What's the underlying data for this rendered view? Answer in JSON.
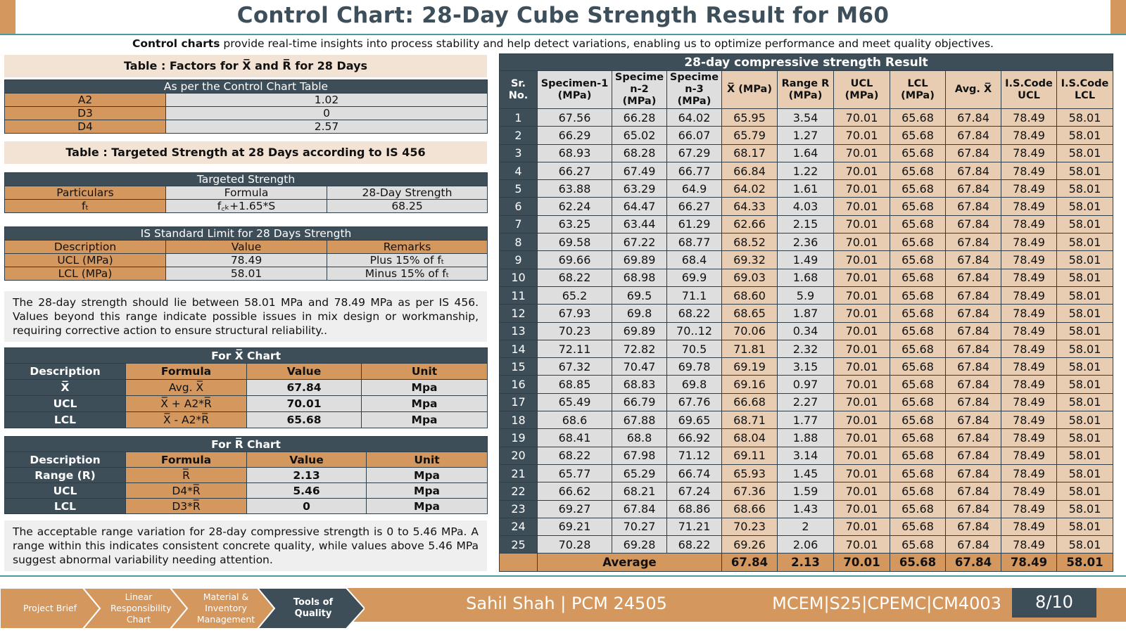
{
  "title": "Control Chart: 28-Day Cube Strength Result for M60",
  "intro": {
    "bold": "Control charts",
    "rest": " provide real-time insights into process stability and help detect variations, enabling us to optimize performance and meet quality objectives."
  },
  "factors": {
    "panel_title": "Table : Factors for X̅ and R̅ for 28 Days",
    "header": "As per the Control Chart Table",
    "rows": [
      {
        "name": "A2",
        "value": "1.02"
      },
      {
        "name": "D3",
        "value": "0"
      },
      {
        "name": "D4",
        "value": "2.57"
      }
    ]
  },
  "targeted": {
    "panel_title": "Table : Targeted Strength at 28 Days according to IS 456",
    "header": "Targeted Strength",
    "cols": [
      "Particulars",
      "Formula",
      "28-Day Strength"
    ],
    "row": {
      "particular": "fₜ",
      "formula": "f꜀ₖ+1.65*S",
      "strength": "68.25"
    }
  },
  "is_limit": {
    "header": "IS Standard Limit for 28 Days Strength",
    "cols": [
      "Description",
      "Value",
      "Remarks"
    ],
    "rows": [
      {
        "desc": "UCL (MPa)",
        "value": "78.49",
        "remark": "Plus 15% of fₜ"
      },
      {
        "desc": "LCL (MPa)",
        "value": "58.01",
        "remark": "Minus 15% of fₜ"
      }
    ]
  },
  "note1": "The 28-day strength should lie between 58.01 MPa and 78.49 MPa as per IS 456. Values beyond this range indicate possible issues in mix design or workmanship, requiring corrective action to ensure structural reliability..",
  "xchart": {
    "header": "For X̅ Chart",
    "cols": [
      "Description",
      "Formula",
      "Value",
      "Unit"
    ],
    "rows": [
      {
        "desc": "X̅",
        "formula": "Avg. X̅",
        "value": "67.84",
        "unit": "Mpa"
      },
      {
        "desc": "UCL",
        "formula": "X̅ + A2*R̅",
        "value": "70.01",
        "unit": "Mpa"
      },
      {
        "desc": "LCL",
        "formula": "X̅ - A2*R̅",
        "value": "65.68",
        "unit": "Mpa"
      }
    ]
  },
  "rchart": {
    "header": "For R̅ Chart",
    "cols": [
      "Description",
      "Formula",
      "Value",
      "Unit"
    ],
    "rows": [
      {
        "desc": "Range (R)",
        "formula": "R̅",
        "value": "2.13",
        "unit": "Mpa"
      },
      {
        "desc": "UCL",
        "formula": "D4*R̅",
        "value": "5.46",
        "unit": "Mpa"
      },
      {
        "desc": "LCL",
        "formula": "D3*R̅",
        "value": "0",
        "unit": "Mpa"
      }
    ]
  },
  "note2": "The acceptable range variation for 28-day compressive strength is 0 to 5.46 MPa. A range within this indicates consistent concrete quality, while values above 5.46 MPa suggest abnormal variability needing attention.",
  "results": {
    "caption": "28-day compressive strength Result",
    "headers": [
      "Sr. No.",
      "Specimen-1 (MPa)",
      "Specime n-2 (MPa)",
      "Specime n-3 (MPa)",
      "X̅ (MPa)",
      "Range R (MPa)",
      "UCL (MPa)",
      "LCL (MPa)",
      "Avg. X̅",
      "I.S.Code UCL",
      "I.S.Code LCL"
    ],
    "rows": [
      [
        "1",
        "67.56",
        "66.28",
        "64.02",
        "65.95",
        "3.54",
        "70.01",
        "65.68",
        "67.84",
        "78.49",
        "58.01"
      ],
      [
        "2",
        "66.29",
        "65.02",
        "66.07",
        "65.79",
        "1.27",
        "70.01",
        "65.68",
        "67.84",
        "78.49",
        "58.01"
      ],
      [
        "3",
        "68.93",
        "68.28",
        "67.29",
        "68.17",
        "1.64",
        "70.01",
        "65.68",
        "67.84",
        "78.49",
        "58.01"
      ],
      [
        "4",
        "66.27",
        "67.49",
        "66.77",
        "66.84",
        "1.22",
        "70.01",
        "65.68",
        "67.84",
        "78.49",
        "58.01"
      ],
      [
        "5",
        "63.88",
        "63.29",
        "64.9",
        "64.02",
        "1.61",
        "70.01",
        "65.68",
        "67.84",
        "78.49",
        "58.01"
      ],
      [
        "6",
        "62.24",
        "64.47",
        "66.27",
        "64.33",
        "4.03",
        "70.01",
        "65.68",
        "67.84",
        "78.49",
        "58.01"
      ],
      [
        "7",
        "63.25",
        "63.44",
        "61.29",
        "62.66",
        "2.15",
        "70.01",
        "65.68",
        "67.84",
        "78.49",
        "58.01"
      ],
      [
        "8",
        "69.58",
        "67.22",
        "68.77",
        "68.52",
        "2.36",
        "70.01",
        "65.68",
        "67.84",
        "78.49",
        "58.01"
      ],
      [
        "9",
        "69.66",
        "69.89",
        "68.4",
        "69.32",
        "1.49",
        "70.01",
        "65.68",
        "67.84",
        "78.49",
        "58.01"
      ],
      [
        "10",
        "68.22",
        "68.98",
        "69.9",
        "69.03",
        "1.68",
        "70.01",
        "65.68",
        "67.84",
        "78.49",
        "58.01"
      ],
      [
        "11",
        "65.2",
        "69.5",
        "71.1",
        "68.60",
        "5.9",
        "70.01",
        "65.68",
        "67.84",
        "78.49",
        "58.01"
      ],
      [
        "12",
        "67.93",
        "69.8",
        "68.22",
        "68.65",
        "1.87",
        "70.01",
        "65.68",
        "67.84",
        "78.49",
        "58.01"
      ],
      [
        "13",
        "70.23",
        "69.89",
        "70..12",
        "70.06",
        "0.34",
        "70.01",
        "65.68",
        "67.84",
        "78.49",
        "58.01"
      ],
      [
        "14",
        "72.11",
        "72.82",
        "70.5",
        "71.81",
        "2.32",
        "70.01",
        "65.68",
        "67.84",
        "78.49",
        "58.01"
      ],
      [
        "15",
        "67.32",
        "70.47",
        "69.78",
        "69.19",
        "3.15",
        "70.01",
        "65.68",
        "67.84",
        "78.49",
        "58.01"
      ],
      [
        "16",
        "68.85",
        "68.83",
        "69.8",
        "69.16",
        "0.97",
        "70.01",
        "65.68",
        "67.84",
        "78.49",
        "58.01"
      ],
      [
        "17",
        "65.49",
        "66.79",
        "67.76",
        "66.68",
        "2.27",
        "70.01",
        "65.68",
        "67.84",
        "78.49",
        "58.01"
      ],
      [
        "18",
        "68.6",
        "67.88",
        "69.65",
        "68.71",
        "1.77",
        "70.01",
        "65.68",
        "67.84",
        "78.49",
        "58.01"
      ],
      [
        "19",
        "68.41",
        "68.8",
        "66.92",
        "68.04",
        "1.88",
        "70.01",
        "65.68",
        "67.84",
        "78.49",
        "58.01"
      ],
      [
        "20",
        "68.22",
        "67.98",
        "71.12",
        "69.11",
        "3.14",
        "70.01",
        "65.68",
        "67.84",
        "78.49",
        "58.01"
      ],
      [
        "21",
        "65.77",
        "65.29",
        "66.74",
        "65.93",
        "1.45",
        "70.01",
        "65.68",
        "67.84",
        "78.49",
        "58.01"
      ],
      [
        "22",
        "66.62",
        "68.21",
        "67.24",
        "67.36",
        "1.59",
        "70.01",
        "65.68",
        "67.84",
        "78.49",
        "58.01"
      ],
      [
        "23",
        "69.27",
        "67.84",
        "68.86",
        "68.66",
        "1.43",
        "70.01",
        "65.68",
        "67.84",
        "78.49",
        "58.01"
      ],
      [
        "24",
        "69.21",
        "70.27",
        "71.21",
        "70.23",
        "2",
        "70.01",
        "65.68",
        "67.84",
        "78.49",
        "58.01"
      ],
      [
        "25",
        "70.28",
        "69.28",
        "68.22",
        "69.26",
        "2.06",
        "70.01",
        "65.68",
        "67.84",
        "78.49",
        "58.01"
      ]
    ],
    "average": {
      "label": "Average",
      "values": [
        "67.84",
        "2.13",
        "70.01",
        "65.68",
        "67.84",
        "78.49",
        "58.01"
      ]
    }
  },
  "footer": {
    "nav": [
      {
        "label": "Project Brief"
      },
      {
        "label": "Linear Responsibility Chart"
      },
      {
        "label": "Material & Inventory Management"
      },
      {
        "label": "Tools of Quality"
      }
    ],
    "author": "Sahil Shah | PCM 24505",
    "course": "MCEM|S25|CPEMC|CM4003",
    "page": "8/10"
  },
  "colors": {
    "accent": "#d4975e",
    "dark": "#3d4e58",
    "teal": "#4a9aa3",
    "light_tan": "#f3e3d4"
  }
}
